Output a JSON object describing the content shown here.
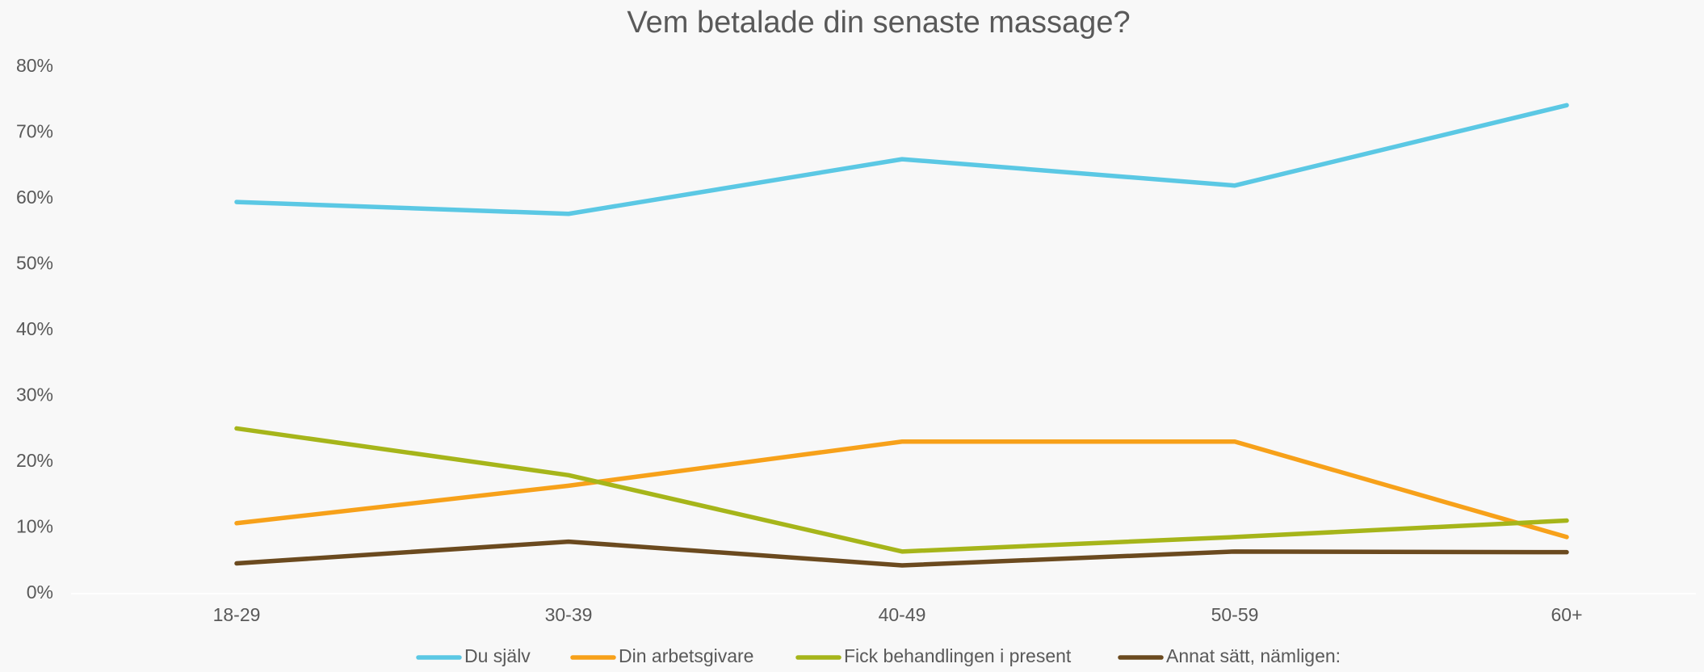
{
  "chart_data": {
    "type": "line",
    "title": "Vem betalade din senaste massage?",
    "categories": [
      "18-29",
      "30-39",
      "40-49",
      "50-59",
      "60+"
    ],
    "series": [
      {
        "name": "Du själv",
        "color": "#5bc8e4",
        "values": [
          59.5,
          57.7,
          66.0,
          62.0,
          74.2
        ]
      },
      {
        "name": "Din arbetsgivare",
        "color": "#f7a11a",
        "values": [
          10.7,
          16.4,
          23.1,
          23.1,
          8.6
        ]
      },
      {
        "name": "Fick behandlingen i present",
        "color": "#a6b51a",
        "values": [
          25.1,
          18.0,
          6.4,
          8.6,
          11.1
        ]
      },
      {
        "name": "Annat sätt, nämligen:",
        "color": "#6b4a1f",
        "values": [
          4.6,
          7.9,
          4.3,
          6.4,
          6.3
        ]
      }
    ],
    "ylim": [
      0,
      80
    ],
    "yticks": [
      {
        "value": 0,
        "label": "0%"
      },
      {
        "value": 10,
        "label": "10%"
      },
      {
        "value": 20,
        "label": "20%"
      },
      {
        "value": 30,
        "label": "30%"
      },
      {
        "value": 40,
        "label": "40%"
      },
      {
        "value": 50,
        "label": "50%"
      },
      {
        "value": 60,
        "label": "60%"
      },
      {
        "value": 70,
        "label": "70%"
      },
      {
        "value": 80,
        "label": "80%"
      }
    ],
    "grid": false,
    "legend": "bottom"
  }
}
